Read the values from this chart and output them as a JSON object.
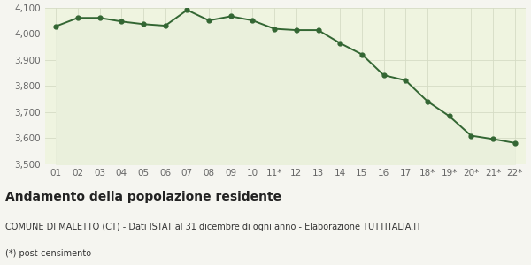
{
  "x_labels": [
    "01",
    "02",
    "03",
    "04",
    "05",
    "06",
    "07",
    "08",
    "09",
    "10",
    "11*",
    "12",
    "13",
    "14",
    "15",
    "16",
    "17",
    "18*",
    "19*",
    "20*",
    "21*",
    "22*"
  ],
  "y_values": [
    4030,
    4062,
    4062,
    4048,
    4038,
    4032,
    4092,
    4052,
    4068,
    4052,
    4020,
    4015,
    4015,
    3965,
    3922,
    3842,
    3822,
    3742,
    3685,
    3610,
    3597,
    3582
  ],
  "ylim": [
    3500,
    4100
  ],
  "yticks": [
    3500,
    3600,
    3700,
    3800,
    3900,
    4000,
    4100
  ],
  "line_color": "#336633",
  "fill_color": "#eaf0dc",
  "marker_size": 3.5,
  "line_width": 1.4,
  "bg_color": "#f5f5f0",
  "plot_bg_color": "#eff4e0",
  "grid_color": "#d5dcc5",
  "title": "Andamento della popolazione residente",
  "subtitle": "COMUNE DI MALETTO (CT) - Dati ISTAT al 31 dicembre di ogni anno - Elaborazione TUTTITALIA.IT",
  "footnote": "(*) post-censimento",
  "title_fontsize": 10,
  "subtitle_fontsize": 7,
  "footnote_fontsize": 7,
  "tick_fontsize": 7.5,
  "tick_color": "#666666"
}
